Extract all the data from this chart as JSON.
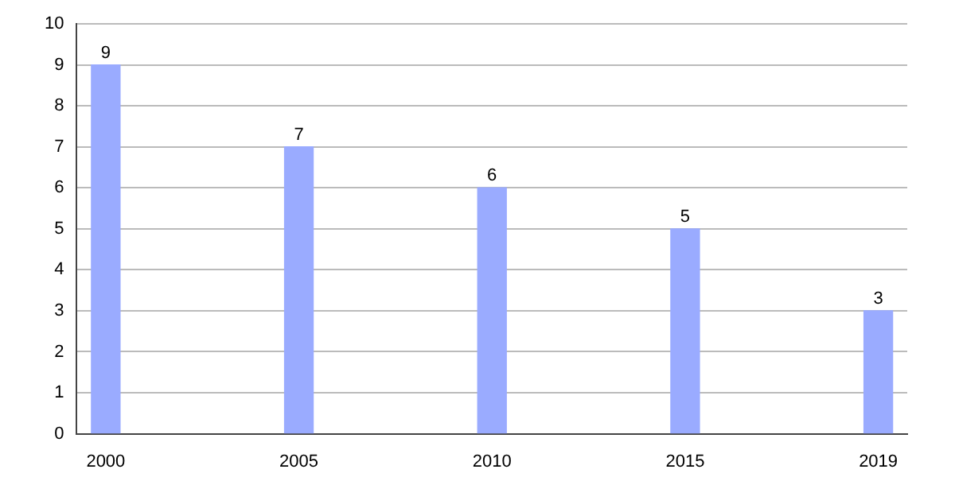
{
  "chart_data": {
    "type": "bar",
    "categories": [
      "2000",
      "2005",
      "2010",
      "2015",
      "2019"
    ],
    "values": [
      9,
      7,
      6,
      5,
      3
    ],
    "color": "#9aabff",
    "ylim": [
      0,
      10
    ],
    "yticks": [
      0,
      1,
      2,
      3,
      4,
      5,
      6,
      7,
      8,
      9,
      10
    ],
    "grid": "y",
    "data_labels": true,
    "legend": false
  }
}
